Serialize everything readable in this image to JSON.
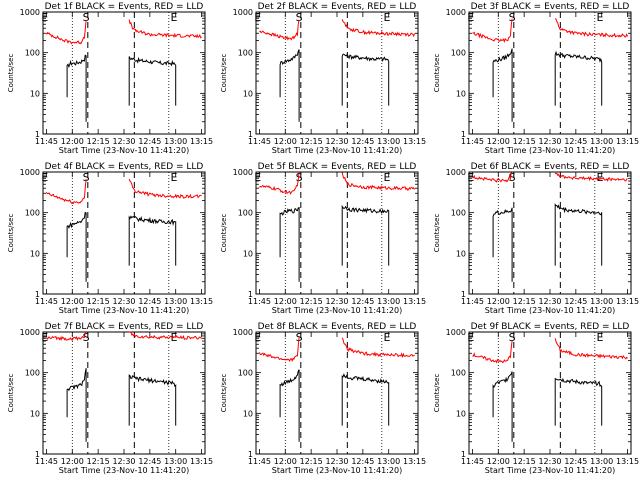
{
  "chart_data": {
    "type": "line",
    "yscale": "log",
    "ylim": [
      1,
      1000
    ],
    "xlim": [
      "11:43",
      "13:17"
    ],
    "x_tick_labels": [
      "11:45",
      "12:00",
      "12:15",
      "12:30",
      "12:45",
      "13:00",
      "13:15"
    ],
    "y_tick_labels": [
      "1",
      "10",
      "100",
      "1000"
    ],
    "ylabel": "Counts/sec",
    "xlabel": "Start Time (23-Nov-10 11:41:20)",
    "series_colors": {
      "events": "#000000",
      "lld": "#ff0000"
    },
    "markers": {
      "dotted_lines": [
        "12:00",
        "12:56"
      ],
      "dashed_lines": [
        "12:09",
        "12:36"
      ],
      "labels": [
        {
          "text": "E",
          "at": "11:44"
        },
        {
          "text": "S",
          "at": "12:08"
        },
        {
          "text": "E",
          "at": "12:59"
        }
      ]
    },
    "panels": [
      {
        "title": "Det 1f BLACK = Events, RED = LLD",
        "series": [
          {
            "name": "Events",
            "segments": [
              {
                "t": [
                  "11:57",
                  "11:59",
                  "12:02",
                  "12:05",
                  "12:07",
                  "12:08"
                ],
                "v": [
                  45,
                  55,
                  55,
                  60,
                  70,
                  90
                ]
              },
              {
                "t": [
                  "12:33",
                  "12:38",
                  "12:45",
                  "12:52",
                  "12:58",
                  "13:00"
                ],
                "v": [
                  75,
                  65,
                  60,
                  55,
                  55,
                  50
                ]
              }
            ]
          },
          {
            "name": "LLD",
            "segments": [
              {
                "t": [
                  "11:45",
                  "11:50",
                  "11:55",
                  "12:00",
                  "12:05",
                  "12:07",
                  "12:08"
                ],
                "v": [
                  300,
                  250,
                  200,
                  180,
                  180,
                  250,
                  600
                ]
              },
              {
                "t": [
                  "12:33",
                  "12:36",
                  "12:45",
                  "12:55",
                  "13:05",
                  "13:15"
                ],
                "v": [
                  600,
                  350,
                  280,
                  270,
                  260,
                  250
                ]
              }
            ]
          }
        ]
      },
      {
        "title": "Det 2f BLACK = Events, RED = LLD",
        "series": [
          {
            "name": "Events",
            "segments": [
              {
                "t": [
                  "11:57",
                  "11:59",
                  "12:02",
                  "12:05",
                  "12:07",
                  "12:08"
                ],
                "v": [
                  55,
                  60,
                  65,
                  75,
                  95,
                  120
                ]
              },
              {
                "t": [
                  "12:33",
                  "12:38",
                  "12:45",
                  "12:52",
                  "12:58",
                  "13:00"
                ],
                "v": [
                  90,
                  80,
                  75,
                  70,
                  70,
                  65
                ]
              }
            ]
          },
          {
            "name": "LLD",
            "segments": [
              {
                "t": [
                  "11:45",
                  "11:50",
                  "11:55",
                  "12:00",
                  "12:05",
                  "12:07",
                  "12:08"
                ],
                "v": [
                  330,
                  300,
                  260,
                  230,
                  230,
                  300,
                  700
                ]
              },
              {
                "t": [
                  "12:33",
                  "12:36",
                  "12:45",
                  "12:55",
                  "13:05",
                  "13:15"
                ],
                "v": [
                  700,
                  400,
                  320,
                  300,
                  290,
                  280
                ]
              }
            ]
          }
        ]
      },
      {
        "title": "Det 3f BLACK = Events, RED = LLD",
        "series": [
          {
            "name": "Events",
            "segments": [
              {
                "t": [
                  "11:57",
                  "11:59",
                  "12:02",
                  "12:05",
                  "12:07",
                  "12:08"
                ],
                "v": [
                  60,
                  65,
                  70,
                  80,
                  100,
                  120
                ]
              },
              {
                "t": [
                  "12:33",
                  "12:38",
                  "12:45",
                  "12:52",
                  "12:58",
                  "13:00"
                ],
                "v": [
                  95,
                  85,
                  80,
                  75,
                  70,
                  65
                ]
              }
            ]
          },
          {
            "name": "LLD",
            "segments": [
              {
                "t": [
                  "11:45",
                  "11:50",
                  "11:55",
                  "12:00",
                  "12:05",
                  "12:07",
                  "12:08"
                ],
                "v": [
                  300,
                  260,
                  220,
                  200,
                  200,
                  280,
                  700
                ]
              },
              {
                "t": [
                  "12:33",
                  "12:36",
                  "12:45",
                  "12:55",
                  "13:05",
                  "13:15"
                ],
                "v": [
                  700,
                  380,
                  300,
                  280,
                  270,
                  260
                ]
              }
            ]
          }
        ]
      },
      {
        "title": "Det 4f BLACK = Events, RED = LLD",
        "series": [
          {
            "name": "Events",
            "segments": [
              {
                "t": [
                  "11:57",
                  "11:59",
                  "12:02",
                  "12:05",
                  "12:07",
                  "12:08"
                ],
                "v": [
                  45,
                  50,
                  55,
                  60,
                  80,
                  110
                ]
              },
              {
                "t": [
                  "12:33",
                  "12:38",
                  "12:45",
                  "12:52",
                  "12:58",
                  "13:00"
                ],
                "v": [
                  80,
                  70,
                  65,
                  60,
                  60,
                  55
                ]
              }
            ]
          },
          {
            "name": "LLD",
            "segments": [
              {
                "t": [
                  "11:45",
                  "11:50",
                  "11:55",
                  "12:00",
                  "12:05",
                  "12:07",
                  "12:08"
                ],
                "v": [
                  300,
                  250,
                  210,
                  180,
                  180,
                  250,
                  650
                ]
              },
              {
                "t": [
                  "12:33",
                  "12:36",
                  "12:45",
                  "12:55",
                  "13:05",
                  "13:15"
                ],
                "v": [
                  650,
                  350,
                  280,
                  260,
                  250,
                  250
                ]
              }
            ]
          }
        ]
      },
      {
        "title": "Det 5f BLACK = Events, RED = LLD",
        "series": [
          {
            "name": "Events",
            "segments": [
              {
                "t": [
                  "11:57",
                  "11:59",
                  "12:02",
                  "12:05",
                  "12:07",
                  "12:08"
                ],
                "v": [
                  90,
                  100,
                  110,
                  110,
                  120,
                  140
                ]
              },
              {
                "t": [
                  "12:33",
                  "12:38",
                  "12:45",
                  "12:52",
                  "12:58",
                  "13:00"
                ],
                "v": [
                  140,
                  120,
                  115,
                  110,
                  110,
                  105
                ]
              }
            ]
          },
          {
            "name": "LLD",
            "segments": [
              {
                "t": [
                  "11:45",
                  "11:50",
                  "11:55",
                  "12:00",
                  "12:05",
                  "12:07",
                  "12:08"
                ],
                "v": [
                  450,
                  420,
                  380,
                  320,
                  320,
                  500,
                  900
                ]
              },
              {
                "t": [
                  "12:33",
                  "12:36",
                  "12:45",
                  "12:55",
                  "13:05",
                  "13:15"
                ],
                "v": [
                  900,
                  500,
                  430,
                  410,
                  400,
                  390
                ]
              }
            ]
          }
        ]
      },
      {
        "title": "Det 6f BLACK = Events, RED = LLD",
        "series": [
          {
            "name": "Events",
            "segments": [
              {
                "t": [
                  "11:57",
                  "11:59",
                  "12:02",
                  "12:05",
                  "12:07",
                  "12:08"
                ],
                "v": [
                  90,
                  100,
                  100,
                  105,
                  110,
                  130
                ]
              },
              {
                "t": [
                  "12:33",
                  "12:38",
                  "12:45",
                  "12:52",
                  "12:58",
                  "13:00"
                ],
                "v": [
                  150,
                  120,
                  110,
                  105,
                  100,
                  100
                ]
              }
            ]
          },
          {
            "name": "LLD",
            "segments": [
              {
                "t": [
                  "11:45",
                  "11:50",
                  "11:55",
                  "12:00",
                  "12:05",
                  "12:07",
                  "12:08"
                ],
                "v": [
                  750,
                  700,
                  650,
                  620,
                  620,
                  750,
                  1000
                ]
              },
              {
                "t": [
                  "12:33",
                  "12:36",
                  "12:45",
                  "12:55",
                  "13:05",
                  "13:15"
                ],
                "v": [
                  1000,
                  800,
                  700,
                  680,
                  660,
                  650
                ]
              }
            ]
          }
        ]
      },
      {
        "title": "Det 7f BLACK = Events, RED = LLD",
        "series": [
          {
            "name": "Events",
            "segments": [
              {
                "t": [
                  "11:57",
                  "11:59",
                  "12:02",
                  "12:05",
                  "12:07",
                  "12:08"
                ],
                "v": [
                  40,
                  42,
                  45,
                  50,
                  70,
                  120
                ]
              },
              {
                "t": [
                  "12:33",
                  "12:38",
                  "12:45",
                  "12:52",
                  "12:58",
                  "13:00"
                ],
                "v": [
                  80,
                  70,
                  65,
                  60,
                  55,
                  50
                ]
              }
            ]
          },
          {
            "name": "LLD",
            "segments": [
              {
                "t": [
                  "11:45",
                  "11:50",
                  "11:55",
                  "12:00",
                  "12:05",
                  "12:07",
                  "12:08"
                ],
                "v": [
                  700,
                  720,
                  700,
                  680,
                  700,
                  800,
                  1000
                ]
              },
              {
                "t": [
                  "12:33",
                  "12:36",
                  "12:45",
                  "12:55",
                  "13:05",
                  "13:15"
                ],
                "v": [
                  1000,
                  800,
                  750,
                  740,
                  730,
                  720
                ]
              }
            ]
          }
        ]
      },
      {
        "title": "Det 8f BLACK = Events, RED = LLD",
        "series": [
          {
            "name": "Events",
            "segments": [
              {
                "t": [
                  "11:57",
                  "11:59",
                  "12:02",
                  "12:05",
                  "12:07",
                  "12:08"
                ],
                "v": [
                  50,
                  55,
                  60,
                  70,
                  90,
                  130
                ]
              },
              {
                "t": [
                  "12:33",
                  "12:38",
                  "12:45",
                  "12:52",
                  "12:58",
                  "13:00"
                ],
                "v": [
                  90,
                  75,
                  70,
                  65,
                  60,
                  60
                ]
              }
            ]
          },
          {
            "name": "LLD",
            "segments": [
              {
                "t": [
                  "11:45",
                  "11:50",
                  "11:55",
                  "12:00",
                  "12:05",
                  "12:07",
                  "12:08"
                ],
                "v": [
                  300,
                  260,
                  230,
                  210,
                  210,
                  280,
                  700
                ]
              },
              {
                "t": [
                  "12:33",
                  "12:36",
                  "12:45",
                  "12:55",
                  "13:05",
                  "13:15"
                ],
                "v": [
                  700,
                  380,
                  300,
                  280,
                  270,
                  260
                ]
              }
            ]
          }
        ]
      },
      {
        "title": "Det 9f BLACK = Events, RED = LLD",
        "series": [
          {
            "name": "Events",
            "segments": [
              {
                "t": [
                  "11:57",
                  "11:59",
                  "12:02",
                  "12:05",
                  "12:07",
                  "12:08"
                ],
                "v": [
                  45,
                  55,
                  60,
                  70,
                  90,
                  110
                ]
              },
              {
                "t": [
                  "12:33",
                  "12:38",
                  "12:45",
                  "12:52",
                  "12:58",
                  "13:00"
                ],
                "v": [
                  75,
                  65,
                  60,
                  55,
                  55,
                  50
                ]
              }
            ]
          },
          {
            "name": "LLD",
            "segments": [
              {
                "t": [
                  "11:45",
                  "11:50",
                  "11:55",
                  "12:00",
                  "12:05",
                  "12:07",
                  "12:08"
                ],
                "v": [
                  280,
                  240,
                  210,
                  190,
                  190,
                  260,
                  650
                ]
              },
              {
                "t": [
                  "12:33",
                  "12:36",
                  "12:45",
                  "12:55",
                  "13:05",
                  "13:15"
                ],
                "v": [
                  650,
                  350,
                  280,
                  260,
                  250,
                  240
                ]
              }
            ]
          }
        ]
      }
    ]
  }
}
